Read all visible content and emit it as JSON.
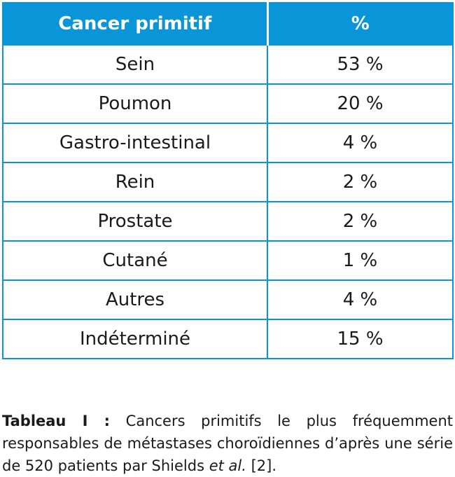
{
  "table": {
    "headers": [
      "Cancer primitif",
      "%"
    ],
    "rows": [
      {
        "cancer": "Sein",
        "percent": "53 %"
      },
      {
        "cancer": "Poumon",
        "percent": "20 %"
      },
      {
        "cancer": "Gastro-intestinal",
        "percent": "4 %"
      },
      {
        "cancer": "Rein",
        "percent": "2 %"
      },
      {
        "cancer": "Prostate",
        "percent": "2 %"
      },
      {
        "cancer": "Cutané",
        "percent": "1 %"
      },
      {
        "cancer": "Autres",
        "percent": "4 %"
      },
      {
        "cancer": "Indéterminé",
        "percent": "15 %"
      }
    ]
  },
  "caption": {
    "label": "Tableau I :",
    "text": " Cancers primitifs le plus fréquemment responsables de métastases choroïdiennes d’après une série de 520 patients par Shields ",
    "italic": "et al.",
    "ref": " [2]."
  },
  "colors": {
    "header_bg": "#0b95d9",
    "border": "#0b95d9"
  }
}
